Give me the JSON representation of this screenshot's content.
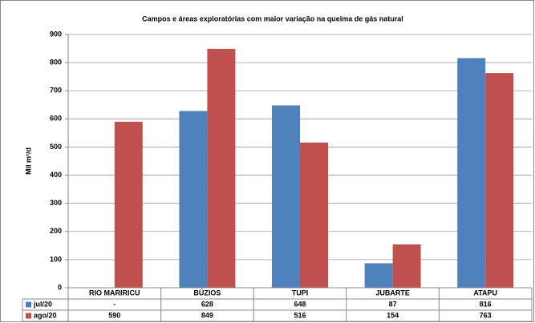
{
  "chart_data": {
    "type": "bar",
    "title": "Campos e áreas exploratórias com maior variação na queima de gás natural",
    "y_label": "Mil m³/d",
    "categories": [
      "RIO MARIRICU",
      "BÚZIOS",
      "TUPI",
      "JUBARTE",
      "ATAPU"
    ],
    "series": [
      {
        "name": "jul/20",
        "color": "#4f81bd",
        "values": [
          null,
          628,
          648,
          87,
          816
        ],
        "value_labels": [
          "-",
          "628",
          "648",
          "87",
          "816"
        ]
      },
      {
        "name": "ago/20",
        "color": "#c0504d",
        "values": [
          590,
          849,
          516,
          154,
          763
        ]
      }
    ],
    "ylim": [
      0,
      900
    ],
    "yticks": [
      0,
      100,
      200,
      300,
      400,
      500,
      600,
      700,
      800,
      900
    ],
    "grid": true
  }
}
